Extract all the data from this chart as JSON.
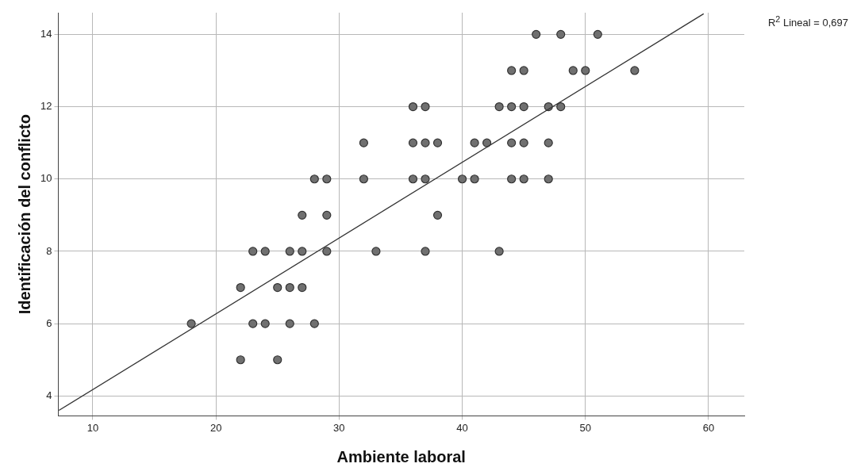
{
  "chart_data": {
    "type": "scatter",
    "xlabel": "Ambiente laboral",
    "ylabel": "Identificación del conflicto",
    "annotations": [
      "R$^{2}$ Lineal = 0,697"
    ],
    "xlim": [
      7.2,
      62.9
    ],
    "ylim": [
      3.45,
      14.6
    ],
    "xticks": [
      10,
      20,
      30,
      40,
      50,
      60
    ],
    "yticks": [
      4,
      6,
      8,
      10,
      12,
      14
    ],
    "grid": true,
    "legend": false,
    "series": [
      {
        "color": "#707070",
        "marker": "circle",
        "x": [
          46,
          48,
          51,
          44,
          45,
          49,
          50,
          54,
          36,
          37,
          43,
          44,
          45,
          47,
          48,
          32,
          36,
          37,
          38,
          41,
          42,
          44,
          45,
          47,
          28,
          29,
          32,
          36,
          37,
          40,
          41,
          44,
          45,
          47,
          27,
          29,
          38,
          23,
          24,
          26,
          27,
          29,
          33,
          37,
          43,
          22,
          25,
          26,
          27,
          18,
          23,
          24,
          26,
          28,
          22,
          25
        ],
        "values": [
          14,
          14,
          14,
          13,
          13,
          13,
          13,
          13,
          12,
          12,
          12,
          12,
          12,
          12,
          12,
          11,
          11,
          11,
          11,
          11,
          11,
          11,
          11,
          11,
          10,
          10,
          10,
          10,
          10,
          10,
          10,
          10,
          10,
          10,
          9,
          9,
          9,
          8,
          8,
          8,
          8,
          8,
          8,
          8,
          8,
          7,
          7,
          7,
          7,
          6,
          6,
          6,
          6,
          6,
          5,
          5
        ]
      },
      {
        "type": "line",
        "color": "#333333",
        "x": [
          7.25,
          59.6
        ],
        "values": [
          3.6,
          14.57
        ],
        "line_style": "solid",
        "marker": "none"
      }
    ]
  }
}
